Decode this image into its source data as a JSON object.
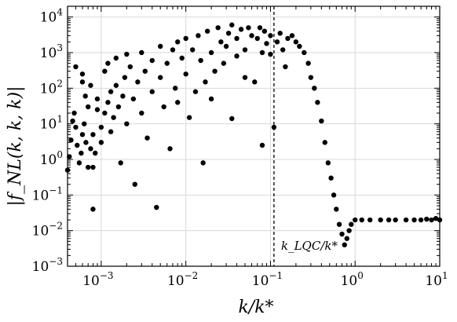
{
  "chart_data": {
    "type": "scatter",
    "xscale": "log",
    "yscale": "log",
    "xlim": [
      0.0004,
      10
    ],
    "ylim": [
      0.001,
      20000
    ],
    "grid": true,
    "xlabel": "k/k*",
    "ylabel": "|f_NL(k, k, k)|",
    "x_ticks": [
      {
        "base": "10",
        "exp": "−3",
        "value": 0.001
      },
      {
        "base": "10",
        "exp": "−2",
        "value": 0.01
      },
      {
        "base": "10",
        "exp": "−1",
        "value": 0.1
      },
      {
        "base": "10",
        "exp": "0",
        "value": 1
      },
      {
        "base": "10",
        "exp": "1",
        "value": 10
      }
    ],
    "y_ticks": [
      {
        "base": "10",
        "exp": "−3",
        "value": 0.001
      },
      {
        "base": "10",
        "exp": "−2",
        "value": 0.01
      },
      {
        "base": "10",
        "exp": "−1",
        "value": 0.1
      },
      {
        "base": "10",
        "exp": "0",
        "value": 1
      },
      {
        "base": "10",
        "exp": "1",
        "value": 10
      },
      {
        "base": "10",
        "exp": "2",
        "value": 100
      },
      {
        "base": "10",
        "exp": "3",
        "value": 1000
      },
      {
        "base": "10",
        "exp": "4",
        "value": 10000
      }
    ],
    "vline": {
      "x": 0.11,
      "style": "dashed",
      "label": "k_LQC/k*"
    },
    "points": [
      [
        0.0004,
        0.5
      ],
      [
        0.00042,
        1.2
      ],
      [
        0.00044,
        3.5
      ],
      [
        0.00046,
        12
      ],
      [
        0.00048,
        20
      ],
      [
        0.0005,
        8
      ],
      [
        0.00052,
        2.5
      ],
      [
        0.00055,
        0.8
      ],
      [
        0.00058,
        1.5
      ],
      [
        0.0006,
        5
      ],
      [
        0.00063,
        10
      ],
      [
        0.00066,
        3
      ],
      [
        0.0007,
        0.6
      ],
      [
        0.00075,
        2
      ],
      [
        0.0008,
        5
      ],
      [
        0.0005,
        400
      ],
      [
        0.0006,
        250
      ],
      [
        0.0006,
        150
      ],
      [
        0.00065,
        60
      ],
      [
        0.0007,
        30
      ],
      [
        0.00075,
        120
      ],
      [
        0.0008,
        0.04
      ],
      [
        0.0008,
        0.6
      ],
      [
        0.00085,
        1.5
      ],
      [
        0.0009,
        25
      ],
      [
        0.0009,
        50
      ],
      [
        0.001,
        3
      ],
      [
        0.001,
        8
      ],
      [
        0.0011,
        20
      ],
      [
        0.0011,
        300
      ],
      [
        0.0012,
        500
      ],
      [
        0.0012,
        40
      ],
      [
        0.0013,
        80
      ],
      [
        0.0013,
        6
      ],
      [
        0.0014,
        15
      ],
      [
        0.0015,
        700
      ],
      [
        0.0015,
        120
      ],
      [
        0.0016,
        30
      ],
      [
        0.0017,
        0.8
      ],
      [
        0.0018,
        60
      ],
      [
        0.0019,
        200
      ],
      [
        0.002,
        900
      ],
      [
        0.002,
        10
      ],
      [
        0.0022,
        400
      ],
      [
        0.0024,
        50
      ],
      [
        0.0025,
        0.2
      ],
      [
        0.0027,
        150
      ],
      [
        0.003,
        1000
      ],
      [
        0.003,
        20
      ],
      [
        0.0033,
        300
      ],
      [
        0.0035,
        4
      ],
      [
        0.004,
        600
      ],
      [
        0.004,
        80
      ],
      [
        0.0045,
        0.045
      ],
      [
        0.005,
        200
      ],
      [
        0.005,
        1500
      ],
      [
        0.0055,
        30
      ],
      [
        0.006,
        500
      ],
      [
        0.0065,
        2
      ],
      [
        0.007,
        1200
      ],
      [
        0.0075,
        100
      ],
      [
        0.008,
        2000
      ],
      [
        0.008,
        40
      ],
      [
        0.009,
        700
      ],
      [
        0.01,
        2500
      ],
      [
        0.01,
        250
      ],
      [
        0.011,
        15
      ],
      [
        0.012,
        1200
      ],
      [
        0.013,
        80
      ],
      [
        0.014,
        3000
      ],
      [
        0.015,
        600
      ],
      [
        0.016,
        0.8
      ],
      [
        0.017,
        150
      ],
      [
        0.018,
        4000
      ],
      [
        0.02,
        1000
      ],
      [
        0.02,
        50
      ],
      [
        0.022,
        300
      ],
      [
        0.024,
        5000
      ],
      [
        0.026,
        2000
      ],
      [
        0.028,
        500
      ],
      [
        0.03,
        1500
      ],
      [
        0.032,
        3500
      ],
      [
        0.035,
        6000
      ],
      [
        0.035,
        14
      ],
      [
        0.04,
        800
      ],
      [
        0.04,
        2500
      ],
      [
        0.045,
        4500
      ],
      [
        0.05,
        1200
      ],
      [
        0.05,
        200
      ],
      [
        0.055,
        5000
      ],
      [
        0.06,
        3000
      ],
      [
        0.065,
        150
      ],
      [
        0.07,
        2500
      ],
      [
        0.075,
        5000
      ],
      [
        0.08,
        1000
      ],
      [
        0.08,
        2.5
      ],
      [
        0.085,
        4000
      ],
      [
        0.09,
        1800
      ],
      [
        0.1,
        3000
      ],
      [
        0.1,
        900
      ],
      [
        0.11,
        8
      ],
      [
        0.12,
        2000
      ],
      [
        0.13,
        3500
      ],
      [
        0.14,
        1200
      ],
      [
        0.15,
        400
      ],
      [
        0.16,
        2500
      ],
      [
        0.18,
        3000
      ],
      [
        0.2,
        2000
      ],
      [
        0.22,
        1500
      ],
      [
        0.25,
        1000
      ],
      [
        0.28,
        500
      ],
      [
        0.3,
        200
      ],
      [
        0.33,
        100
      ],
      [
        0.36,
        40
      ],
      [
        0.4,
        12
      ],
      [
        0.44,
        3
      ],
      [
        0.48,
        0.8
      ],
      [
        0.52,
        0.3
      ],
      [
        0.56,
        0.1
      ],
      [
        0.6,
        0.04
      ],
      [
        0.65,
        0.015
      ],
      [
        0.7,
        0.008
      ],
      [
        0.75,
        0.004
      ],
      [
        0.8,
        0.006
      ],
      [
        0.85,
        0.01
      ],
      [
        0.9,
        0.015
      ],
      [
        1.0,
        0.02
      ],
      [
        1.2,
        0.02
      ],
      [
        1.5,
        0.02
      ],
      [
        2.0,
        0.02
      ],
      [
        2.5,
        0.02
      ],
      [
        3.0,
        0.02
      ],
      [
        4.0,
        0.02
      ],
      [
        5.0,
        0.02
      ],
      [
        6.0,
        0.02
      ],
      [
        7.0,
        0.021
      ],
      [
        8.0,
        0.02
      ],
      [
        9.0,
        0.022
      ],
      [
        10.0,
        0.02
      ]
    ]
  }
}
